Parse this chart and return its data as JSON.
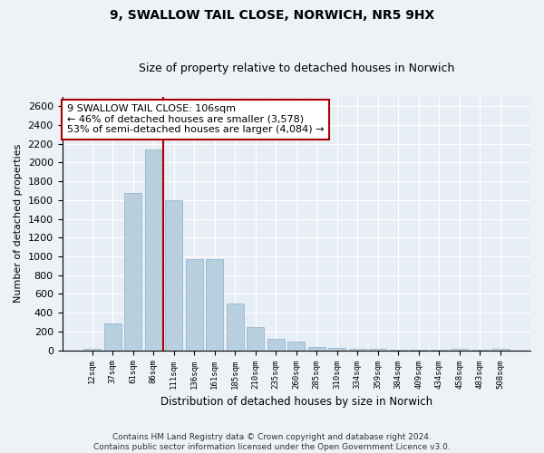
{
  "title": "9, SWALLOW TAIL CLOSE, NORWICH, NR5 9HX",
  "subtitle": "Size of property relative to detached houses in Norwich",
  "xlabel": "Distribution of detached houses by size in Norwich",
  "ylabel": "Number of detached properties",
  "footer_line1": "Contains HM Land Registry data © Crown copyright and database right 2024.",
  "footer_line2": "Contains public sector information licensed under the Open Government Licence v3.0.",
  "annotation_title": "9 SWALLOW TAIL CLOSE: 106sqm",
  "annotation_line1": "← 46% of detached houses are smaller (3,578)",
  "annotation_line2": "53% of semi-detached houses are larger (4,084) →",
  "bar_labels": [
    "12sqm",
    "37sqm",
    "61sqm",
    "86sqm",
    "111sqm",
    "136sqm",
    "161sqm",
    "185sqm",
    "210sqm",
    "235sqm",
    "260sqm",
    "285sqm",
    "310sqm",
    "334sqm",
    "359sqm",
    "384sqm",
    "409sqm",
    "434sqm",
    "458sqm",
    "483sqm",
    "508sqm"
  ],
  "bar_values": [
    20,
    290,
    1680,
    2140,
    1600,
    970,
    970,
    500,
    245,
    120,
    95,
    40,
    25,
    15,
    12,
    10,
    5,
    5,
    12,
    5,
    12
  ],
  "bar_color": "#b8cfe0",
  "bar_edge_color": "#8aafc8",
  "vline_color": "#aa0000",
  "vline_x_index": 3.5,
  "ylim": [
    0,
    2700
  ],
  "yticks": [
    0,
    200,
    400,
    600,
    800,
    1000,
    1200,
    1400,
    1600,
    1800,
    2000,
    2200,
    2400,
    2600
  ],
  "bg_color": "#edf2f7",
  "plot_bg_color": "#e8eef5",
  "annotation_box_color": "#ffffff",
  "annotation_box_edge": "#aa0000",
  "title_fontsize": 10,
  "subtitle_fontsize": 9
}
